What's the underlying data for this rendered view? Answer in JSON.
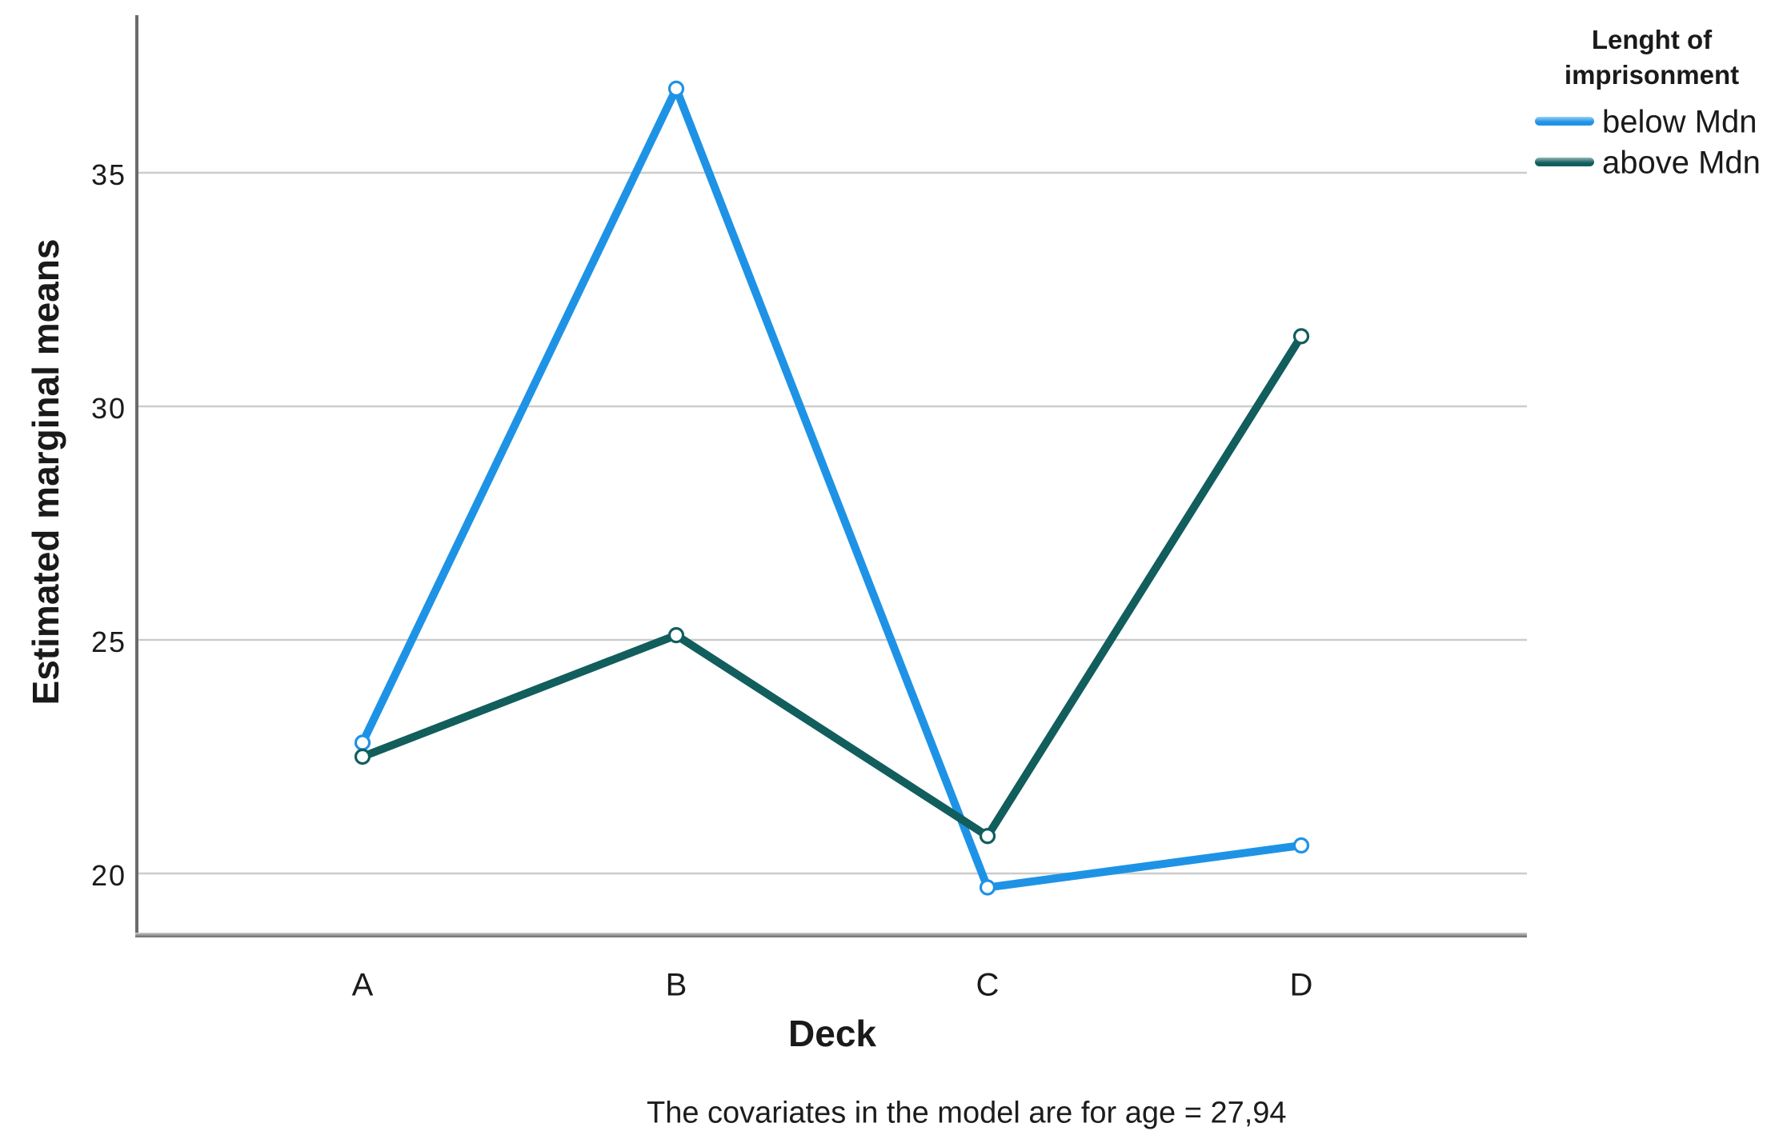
{
  "chart_data": {
    "type": "line",
    "title": "",
    "categories": [
      "A",
      "B",
      "C",
      "D"
    ],
    "series": [
      {
        "name": "below Mdn",
        "color": "#1E93E6",
        "values": [
          22.8,
          36.8,
          19.7,
          20.6
        ]
      },
      {
        "name": "above Mdn",
        "color": "#115E5D",
        "values": [
          22.5,
          25.1,
          20.8,
          31.5
        ]
      }
    ],
    "xlabel": "Deck",
    "ylabel": "Estimated marginal means",
    "yticks": [
      35,
      30,
      25,
      20
    ],
    "ylim": [
      18.7,
      38.3
    ],
    "grid": true,
    "legend_position": "top-right",
    "legend_title_lines": [
      "Lenght of",
      "imprisonment"
    ],
    "caption": "The covariates in the model are for age = 27,94",
    "colors": {
      "gridline": "#CCCCCC",
      "axis": "#6B6B6B",
      "marker_fill": "#FFFFFF",
      "text": "#1A1A1A"
    }
  }
}
